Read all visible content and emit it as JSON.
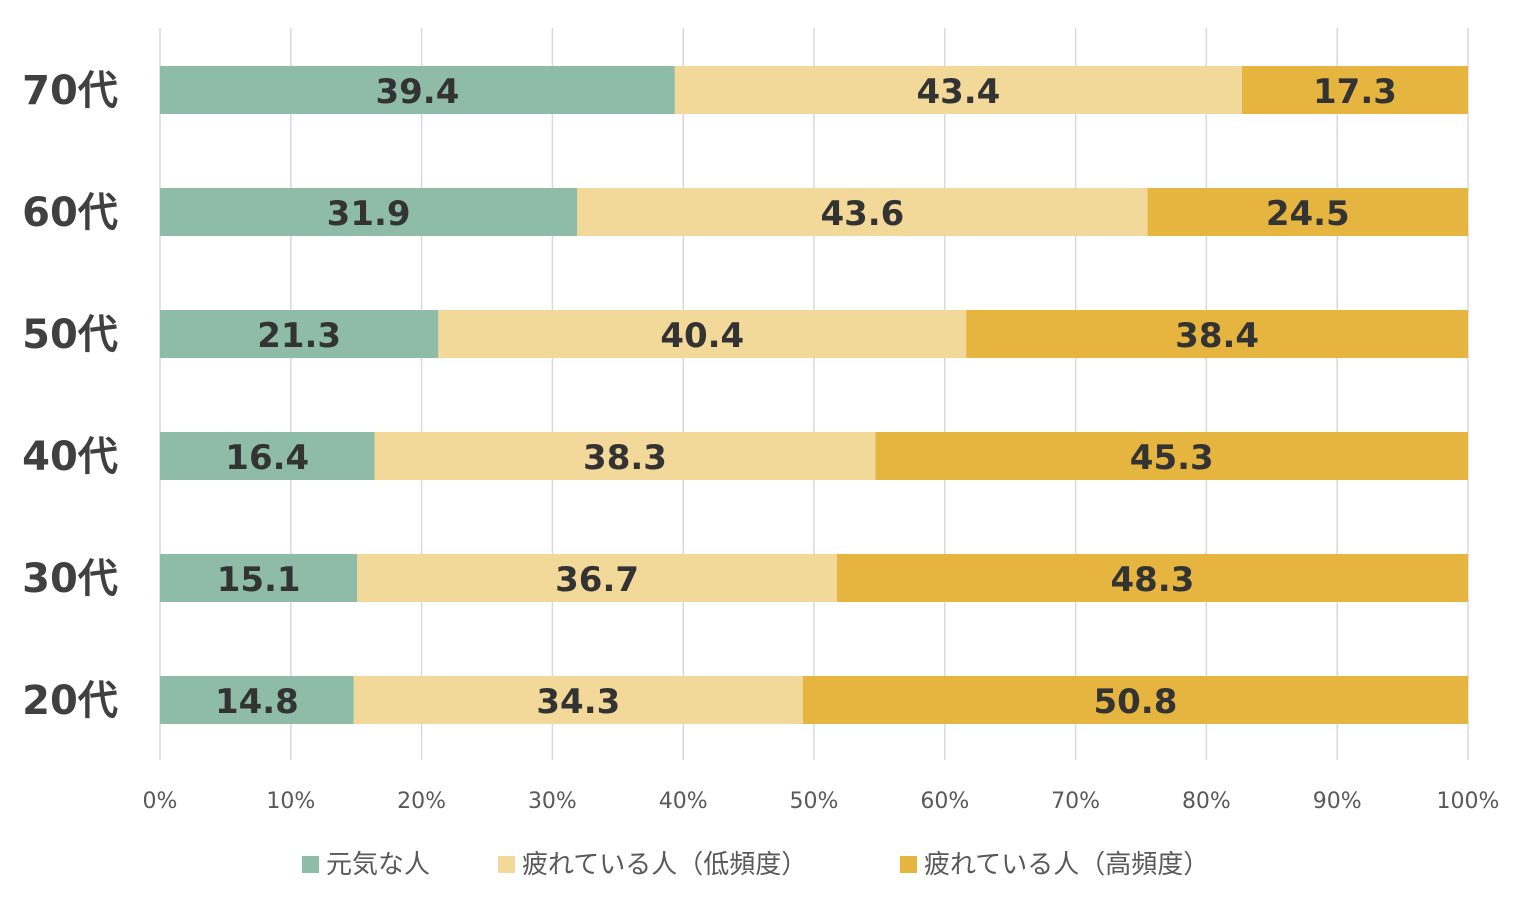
{
  "chart_data": {
    "type": "bar",
    "orientation": "horizontal",
    "stacked": "percent",
    "categories": [
      "70代",
      "60代",
      "50代",
      "40代",
      "30代",
      "20代"
    ],
    "series": [
      {
        "name": "元気な人",
        "color": "#8fbca8",
        "values": [
          39.4,
          31.9,
          21.3,
          16.4,
          15.1,
          14.8
        ]
      },
      {
        "name": "疲れている人（低頻度）",
        "color": "#f2d899",
        "values": [
          43.4,
          43.6,
          40.4,
          38.3,
          36.7,
          34.3
        ]
      },
      {
        "name": "疲れている人（高頻度）",
        "color": "#e6b53f",
        "values": [
          17.3,
          24.5,
          38.4,
          45.3,
          48.3,
          50.8
        ]
      }
    ],
    "xlim": [
      0,
      100
    ],
    "xticks": [
      "0%",
      "10%",
      "20%",
      "30%",
      "40%",
      "50%",
      "60%",
      "70%",
      "80%",
      "90%",
      "100%"
    ],
    "grid": "vertical",
    "legend": "bottom"
  }
}
